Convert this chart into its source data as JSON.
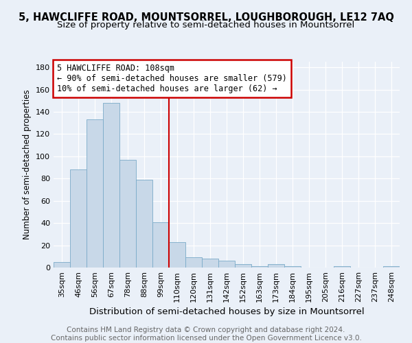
{
  "title": "5, HAWCLIFFE ROAD, MOUNTSORREL, LOUGHBOROUGH, LE12 7AQ",
  "subtitle": "Size of property relative to semi-detached houses in Mountsorrel",
  "xlabel": "Distribution of semi-detached houses by size in Mountsorrel",
  "ylabel": "Number of semi-detached properties",
  "footer": "Contains HM Land Registry data © Crown copyright and database right 2024.\nContains public sector information licensed under the Open Government Licence v3.0.",
  "categories": [
    "35sqm",
    "46sqm",
    "56sqm",
    "67sqm",
    "78sqm",
    "88sqm",
    "99sqm",
    "110sqm",
    "120sqm",
    "131sqm",
    "142sqm",
    "152sqm",
    "163sqm",
    "173sqm",
    "184sqm",
    "195sqm",
    "205sqm",
    "216sqm",
    "227sqm",
    "237sqm",
    "248sqm"
  ],
  "values": [
    5,
    88,
    133,
    148,
    97,
    79,
    41,
    23,
    9,
    8,
    6,
    3,
    1,
    3,
    1,
    0,
    0,
    1,
    0,
    0,
    1
  ],
  "bar_color": "#c8d8e8",
  "bar_edge_color": "#7aaac8",
  "property_line_x": 7,
  "annotation_text": "5 HAWCLIFFE ROAD: 108sqm\n← 90% of semi-detached houses are smaller (579)\n10% of semi-detached houses are larger (62) →",
  "annotation_box_color": "#ffffff",
  "annotation_box_edge_color": "#cc0000",
  "vline_color": "#cc0000",
  "ylim": [
    0,
    185
  ],
  "yticks": [
    0,
    20,
    40,
    60,
    80,
    100,
    120,
    140,
    160,
    180
  ],
  "background_color": "#eaf0f8",
  "title_fontsize": 10.5,
  "subtitle_fontsize": 9.5,
  "xlabel_fontsize": 9.5,
  "ylabel_fontsize": 8.5,
  "tick_fontsize": 8,
  "footer_fontsize": 7.5,
  "ann_fontsize": 8.5
}
